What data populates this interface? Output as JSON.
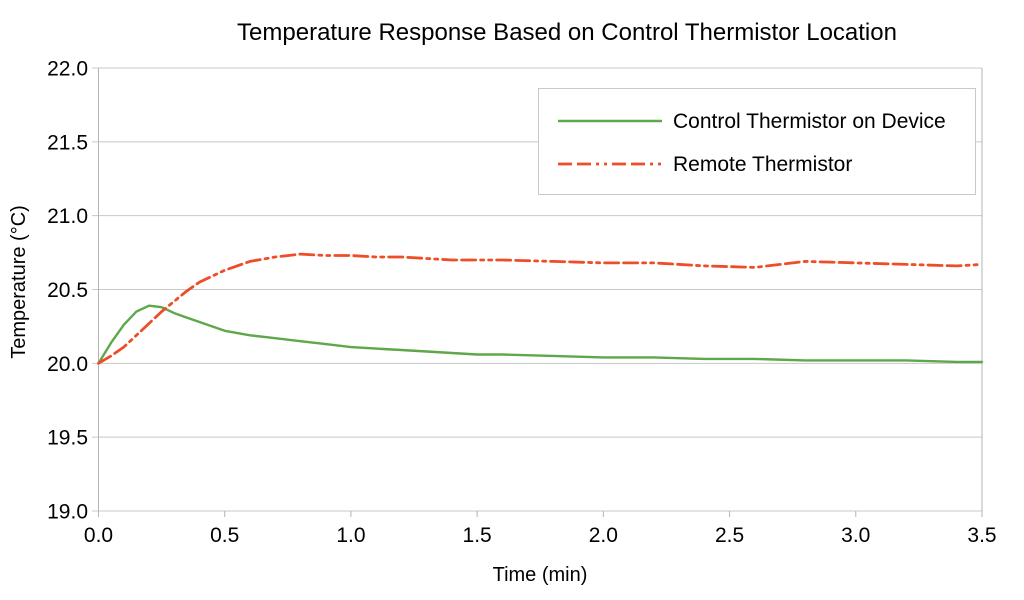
{
  "chart_data": {
    "type": "line",
    "title": "Temperature Response Based on Control Thermistor Location",
    "xlabel": "Time (min)",
    "ylabel": "Temperature (°C)",
    "xlim": [
      0.0,
      3.5
    ],
    "ylim": [
      19.0,
      22.0
    ],
    "x_ticks": [
      "0.0",
      "0.5",
      "1.0",
      "1.5",
      "2.0",
      "2.5",
      "3.0",
      "3.5"
    ],
    "y_ticks": [
      "19.0",
      "19.5",
      "20.0",
      "20.5",
      "21.0",
      "21.5",
      "22.0"
    ],
    "grid": "horizontal-only",
    "legend_position": "top-right-inside",
    "x": [
      0.0,
      0.05,
      0.1,
      0.15,
      0.2,
      0.25,
      0.3,
      0.35,
      0.4,
      0.5,
      0.6,
      0.7,
      0.8,
      0.9,
      1.0,
      1.1,
      1.2,
      1.3,
      1.4,
      1.5,
      1.6,
      1.8,
      2.0,
      2.2,
      2.4,
      2.6,
      2.8,
      3.0,
      3.2,
      3.4,
      3.5
    ],
    "series": [
      {
        "name": "Control Thermistor on Device",
        "color": "#5ea74a",
        "style": "solid",
        "width": 2.4,
        "values": [
          20.0,
          20.14,
          20.26,
          20.35,
          20.39,
          20.38,
          20.34,
          20.31,
          20.28,
          20.22,
          20.19,
          20.17,
          20.15,
          20.13,
          20.11,
          20.1,
          20.09,
          20.08,
          20.07,
          20.06,
          20.06,
          20.05,
          20.04,
          20.04,
          20.03,
          20.03,
          20.02,
          20.02,
          20.02,
          20.01,
          20.01
        ]
      },
      {
        "name": "Remote Thermistor",
        "color": "#ee4d28",
        "style": "dash-dash-dot-dot",
        "width": 2.8,
        "values": [
          20.0,
          20.05,
          20.11,
          20.19,
          20.27,
          20.35,
          20.42,
          20.49,
          20.55,
          20.63,
          20.69,
          20.72,
          20.74,
          20.73,
          20.73,
          20.72,
          20.72,
          20.71,
          20.7,
          20.7,
          20.7,
          20.69,
          20.68,
          20.68,
          20.66,
          20.65,
          20.69,
          20.68,
          20.67,
          20.66,
          20.67
        ]
      }
    ]
  },
  "colors": {
    "background": "#ffffff",
    "grid": "#c8c8c8",
    "axis": "#b4b4b4",
    "legend_border": "#c9c9c9",
    "text": "#000000"
  }
}
